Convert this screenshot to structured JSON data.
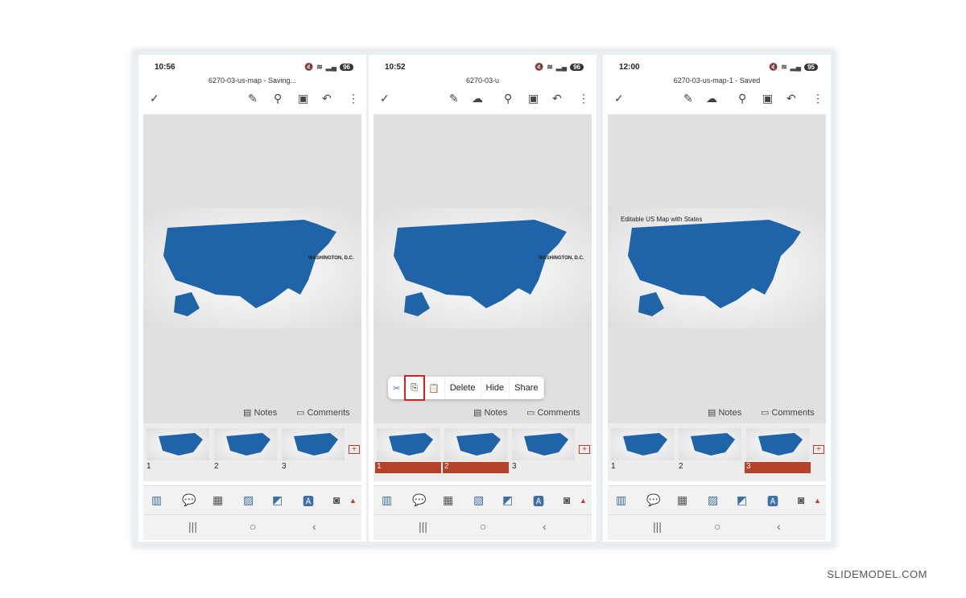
{
  "phones": [
    {
      "time": "10:56",
      "battery": "96",
      "title": "6270-03-us-map - Saving...",
      "notes": "Notes",
      "comments": "Comments",
      "thumbs": [
        "1",
        "2",
        "3"
      ],
      "selected": [],
      "slide_title": ""
    },
    {
      "time": "10:52",
      "battery": "96",
      "title": "6270-03-u",
      "notes": "Notes",
      "comments": "Comments",
      "thumbs": [
        "1",
        "2",
        "3"
      ],
      "selected": [
        0,
        1
      ],
      "slide_title": "",
      "context_menu": {
        "cut": "cut-icon",
        "copy": "copy-icon",
        "paste": "paste-icon",
        "delete": "Delete",
        "hide": "Hide",
        "share": "Share"
      }
    },
    {
      "time": "12:00",
      "battery": "95",
      "title": "6270-03-us-map-1 - Saved",
      "notes": "Notes",
      "comments": "Comments",
      "thumbs": [
        "1",
        "2",
        "3"
      ],
      "selected": [
        2
      ],
      "slide_title": "Editable US Map with States"
    }
  ],
  "map_label": "WASHINGTON, D.C.",
  "brand": "SLIDEMODEL.COM",
  "colors": {
    "map": "#1f63a8",
    "selection": "#b5432a",
    "highlight": "#d42020"
  }
}
